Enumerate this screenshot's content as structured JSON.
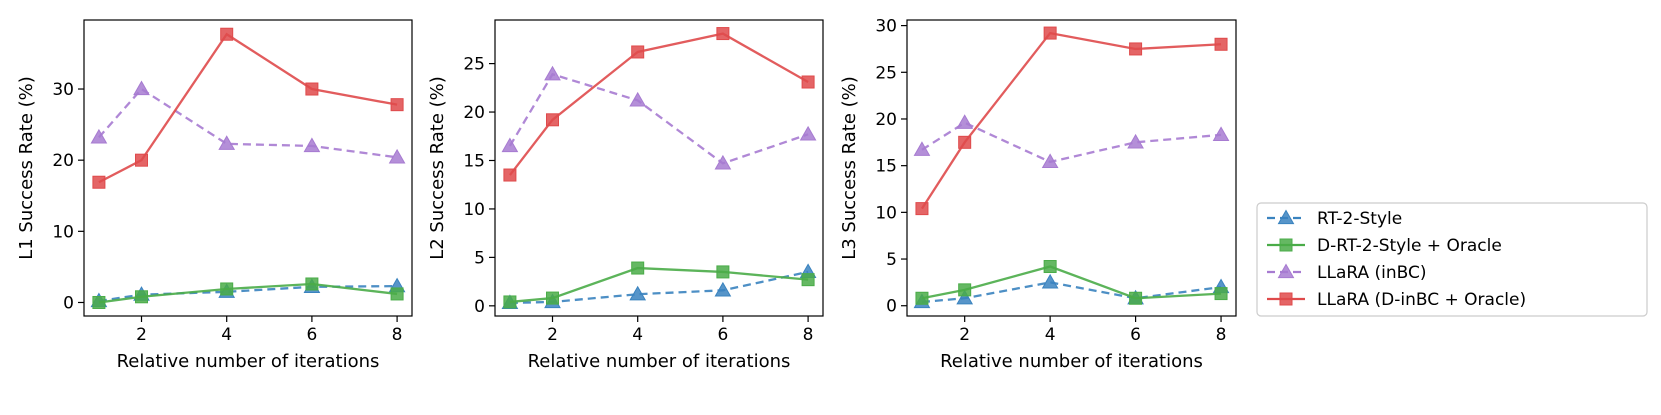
{
  "series_styles": [
    {
      "color": "#3a83bf",
      "dash": "8,5",
      "marker": "triangle"
    },
    {
      "color": "#4aac48",
      "dash": "",
      "marker": "square"
    },
    {
      "color": "#a77bd1",
      "dash": "8,5",
      "marker": "triangle"
    },
    {
      "color": "#df4a4b",
      "dash": "",
      "marker": "square"
    }
  ],
  "legend": {
    "placement": "right",
    "entries": [
      "RT-2-Style",
      "D-RT-2-Style + Oracle",
      "LLaRA (inBC)",
      "LLaRA (D-inBC + Oracle)"
    ]
  },
  "chart_data": [
    {
      "type": "line",
      "xlabel": "Relative number of iterations",
      "ylabel": "L1 Success Rate (%)",
      "x": [
        1,
        2,
        4,
        6,
        8
      ],
      "xlim": [
        0.65,
        8.35
      ],
      "ylim": [
        -1.9,
        39.7
      ],
      "xticks": [
        2,
        4,
        6,
        8
      ],
      "yticks": [
        0,
        10,
        20,
        30
      ],
      "series": [
        {
          "name": "RT-2-Style",
          "values": [
            0.2,
            1.1,
            1.5,
            2.2,
            2.3
          ]
        },
        {
          "name": "D-RT-2-Style + Oracle",
          "values": [
            0.0,
            0.8,
            1.9,
            2.6,
            1.2
          ]
        },
        {
          "name": "LLaRA (inBC)",
          "values": [
            23.2,
            30.0,
            22.3,
            22.0,
            20.4
          ]
        },
        {
          "name": "LLaRA (D-inBC + Oracle)",
          "values": [
            16.9,
            20.0,
            37.7,
            30.0,
            27.8
          ]
        }
      ]
    },
    {
      "type": "line",
      "xlabel": "Relative number of iterations",
      "ylabel": "L2 Success Rate (%)",
      "x": [
        1,
        2,
        4,
        6,
        8
      ],
      "xlim": [
        0.65,
        8.35
      ],
      "ylim": [
        -1.05,
        29.5
      ],
      "xticks": [
        2,
        4,
        6,
        8
      ],
      "yticks": [
        0,
        5,
        10,
        15,
        20,
        25
      ],
      "series": [
        {
          "name": "RT-2-Style",
          "values": [
            0.3,
            0.4,
            1.2,
            1.6,
            3.5
          ]
        },
        {
          "name": "D-RT-2-Style + Oracle",
          "values": [
            0.4,
            0.8,
            3.9,
            3.5,
            2.7
          ]
        },
        {
          "name": "LLaRA (inBC)",
          "values": [
            16.5,
            23.9,
            21.2,
            14.7,
            17.7
          ]
        },
        {
          "name": "LLaRA (D-inBC + Oracle)",
          "values": [
            13.5,
            19.2,
            26.2,
            28.1,
            23.1
          ]
        }
      ]
    },
    {
      "type": "line",
      "xlabel": "Relative number of iterations",
      "ylabel": "L3 Success Rate (%)",
      "x": [
        1,
        2,
        4,
        6,
        8
      ],
      "xlim": [
        0.65,
        8.35
      ],
      "ylim": [
        -1.1,
        30.6
      ],
      "xticks": [
        2,
        4,
        6,
        8
      ],
      "yticks": [
        0,
        5,
        10,
        15,
        20,
        25,
        30
      ],
      "series": [
        {
          "name": "RT-2-Style",
          "values": [
            0.4,
            0.8,
            2.5,
            0.8,
            2.0
          ]
        },
        {
          "name": "D-RT-2-Style + Oracle",
          "values": [
            0.8,
            1.7,
            4.2,
            0.8,
            1.3
          ]
        },
        {
          "name": "LLaRA (inBC)",
          "values": [
            16.7,
            19.6,
            15.4,
            17.5,
            18.3
          ]
        },
        {
          "name": "LLaRA (D-inBC + Oracle)",
          "values": [
            10.4,
            17.5,
            29.2,
            27.5,
            28.0
          ]
        }
      ]
    }
  ]
}
